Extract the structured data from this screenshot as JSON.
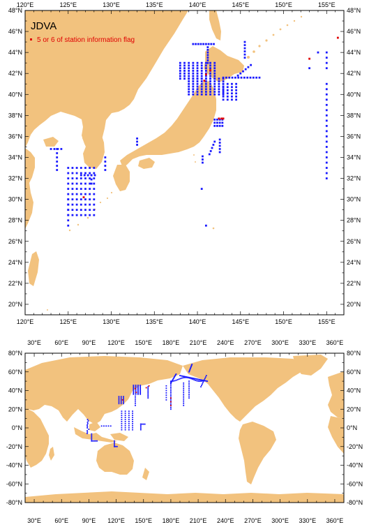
{
  "map_top": {
    "title": "JDVA",
    "legend_label": "5 or 6 of station information flag",
    "lon_labels": [
      "120°E",
      "125°E",
      "130°E",
      "135°E",
      "140°E",
      "145°E",
      "150°E",
      "155°E"
    ],
    "lat_labels": [
      "48°N",
      "46°N",
      "44°N",
      "42°N",
      "40°N",
      "38°N",
      "36°N",
      "34°N",
      "32°N",
      "30°N",
      "28°N",
      "26°N",
      "24°N",
      "22°N",
      "20°N"
    ],
    "lon_range": [
      120,
      157
    ],
    "lat_range": [
      19,
      48
    ]
  },
  "map_bottom": {
    "lon_labels": [
      "30°E",
      "60°E",
      "90°E",
      "120°E",
      "150°E",
      "180°E",
      "210°E",
      "240°E",
      "270°E",
      "300°E",
      "330°E",
      "360°E"
    ],
    "lat_labels": [
      "80°N",
      "60°N",
      "40°N",
      "20°N",
      "0°N",
      "-20°N",
      "-40°N",
      "-60°N",
      "-80°N"
    ],
    "lon_range": [
      20,
      370
    ],
    "lat_range": [
      -80,
      80
    ]
  },
  "colors": {
    "land": "#f2c27e",
    "station": "#1a1aff",
    "flagged": "#e00000"
  }
}
